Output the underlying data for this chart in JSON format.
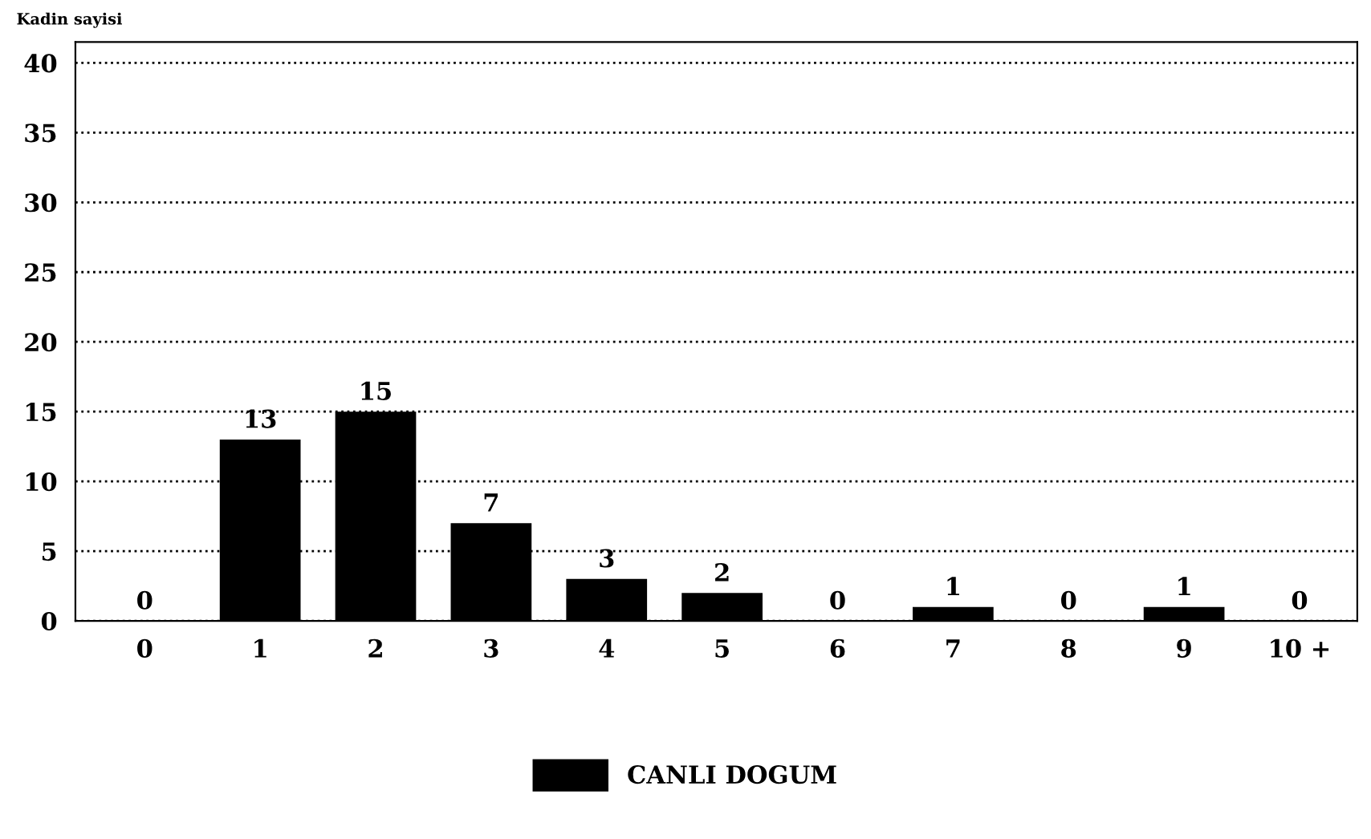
{
  "chart_data": {
    "type": "bar",
    "ylabel": "Kadin sayisi",
    "categories": [
      "0",
      "1",
      "2",
      "3",
      "4",
      "5",
      "6",
      "7",
      "8",
      "9",
      "10 +"
    ],
    "series": [
      {
        "name": "CANLI DOGUM",
        "color": "#000000",
        "values": [
          0,
          13,
          15,
          7,
          3,
          2,
          0,
          1,
          0,
          1,
          0
        ]
      }
    ],
    "ylim": [
      0,
      41.5
    ],
    "yticks": [
      0,
      5,
      10,
      15,
      20,
      25,
      30,
      35,
      40
    ],
    "grid": "y",
    "line_style": "dotted",
    "data_labels": true,
    "legend": "bottom"
  }
}
